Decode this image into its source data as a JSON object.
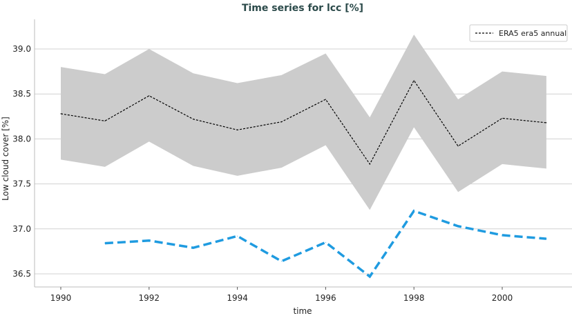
{
  "chart_data": {
    "type": "line",
    "title": "Time series for lcc [%]",
    "xlabel": "time",
    "ylabel": "Low cloud cover [%]",
    "xlim": [
      1989.4,
      2001.6
    ],
    "ylim": [
      36.39,
      39.27
    ],
    "grid": "horizontal",
    "legend_placement": "top-right",
    "x_ticks": [
      1990,
      1992,
      1994,
      1996,
      1998,
      2000
    ],
    "y_ticks": [
      36.5,
      37.0,
      37.5,
      38.0,
      38.5,
      39.0
    ],
    "series": [
      {
        "name": "ERA5 era5 annual",
        "style": "dashed",
        "color": "#000000",
        "x": [
          1990,
          1991,
          1992,
          1993,
          1994,
          1995,
          1996,
          1997,
          1998,
          1999,
          2000,
          2001
        ],
        "values": [
          38.28,
          38.2,
          38.48,
          38.22,
          38.1,
          38.19,
          38.44,
          37.72,
          38.65,
          37.92,
          38.23,
          38.18
        ],
        "band_upper": [
          38.8,
          38.72,
          39.0,
          38.73,
          38.62,
          38.71,
          38.95,
          38.24,
          39.16,
          38.44,
          38.75,
          38.7
        ],
        "band_lower": [
          37.77,
          37.69,
          37.97,
          37.7,
          37.59,
          37.68,
          37.93,
          37.21,
          38.13,
          37.41,
          37.72,
          37.67
        ],
        "band_color": "#cccccc"
      },
      {
        "style": "dashed",
        "color": "#1f9be0",
        "x": [
          1991,
          1992,
          1993,
          1994,
          1995,
          1996,
          1997,
          1998,
          1999,
          2000,
          2001
        ],
        "values": [
          36.84,
          36.87,
          36.79,
          36.92,
          36.64,
          36.85,
          36.47,
          37.2,
          37.03,
          36.93,
          36.89
        ]
      }
    ]
  }
}
